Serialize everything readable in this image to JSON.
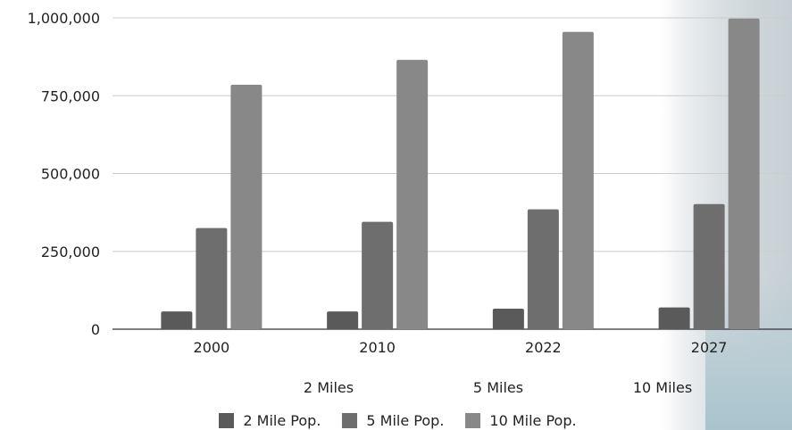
{
  "chart_data": {
    "type": "bar",
    "categories": [
      "2000",
      "2010",
      "2022",
      "2027"
    ],
    "series": [
      {
        "name": "2 Mile Pop.",
        "values": [
          57000,
          57000,
          66000,
          70000
        ],
        "color": "#5a5a5a"
      },
      {
        "name": "5 Mile Pop.",
        "values": [
          325000,
          345000,
          385000,
          402000
        ],
        "color": "#6e6e6e"
      },
      {
        "name": "10 Mile Pop.",
        "values": [
          785000,
          865000,
          955000,
          998000
        ],
        "color": "#888888"
      }
    ],
    "y_ticks": [
      {
        "value": 0,
        "label": "0"
      },
      {
        "value": 250000,
        "label": "250,000"
      },
      {
        "value": 500000,
        "label": "500,000"
      },
      {
        "value": 750000,
        "label": "750,000"
      },
      {
        "value": 1000000,
        "label": "1,000,000"
      }
    ],
    "ylim": [
      0,
      1000000
    ],
    "grid": true,
    "legend_position": "bottom",
    "group_labels": [
      "2 Miles",
      "5 Miles",
      "10 Miles"
    ]
  }
}
